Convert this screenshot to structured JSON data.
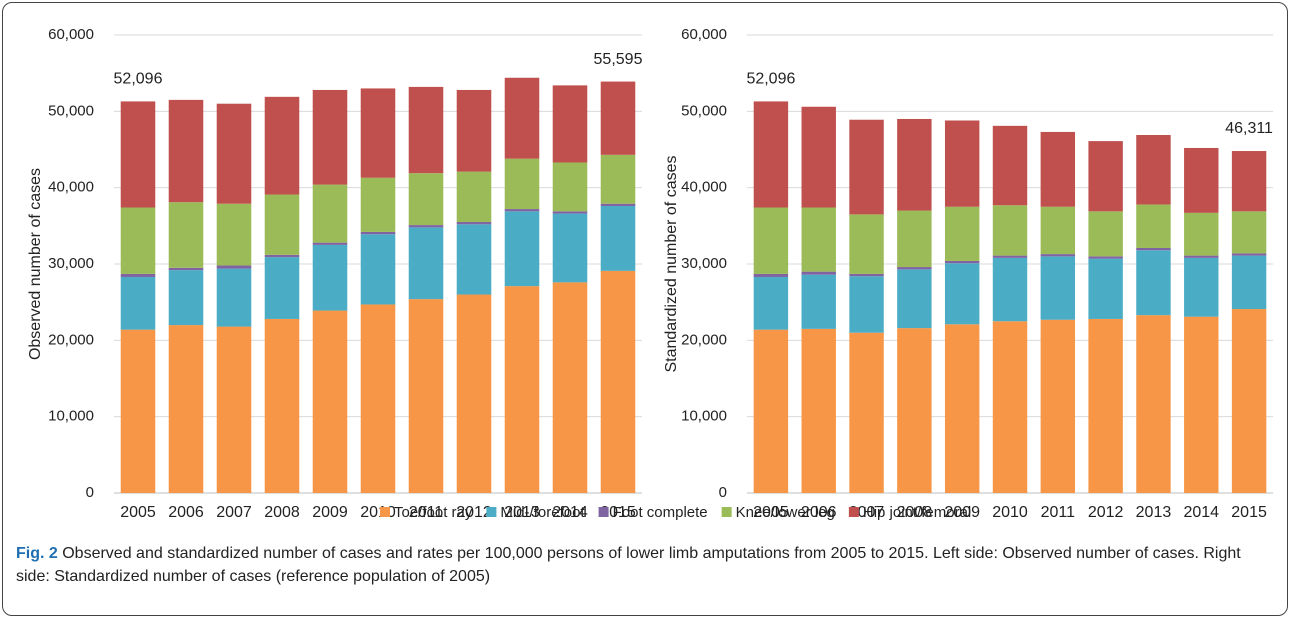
{
  "chart_data": [
    {
      "type": "bar",
      "stacked": true,
      "y_label": "Observed number of cases",
      "categories": [
        "2005",
        "2006",
        "2007",
        "2008",
        "2009",
        "2010",
        "2011",
        "2012",
        "2013",
        "2014",
        "2015"
      ],
      "series": [
        {
          "name": "Toe/foot ray",
          "color": "#f79646",
          "values": [
            21400,
            22000,
            21800,
            22800,
            23900,
            24700,
            25400,
            26000,
            27100,
            27600,
            29100
          ]
        },
        {
          "name": "Mid-/forefoot",
          "color": "#4bacc6",
          "values": [
            6900,
            7200,
            7600,
            8100,
            8600,
            9200,
            9400,
            9200,
            9800,
            9000,
            8500
          ]
        },
        {
          "name": "Foot complete",
          "color": "#8064a2",
          "values": [
            400,
            300,
            400,
            300,
            300,
            300,
            300,
            300,
            300,
            300,
            300
          ]
        },
        {
          "name": "Knee/lower leg",
          "color": "#9bbb59",
          "values": [
            8700,
            8600,
            8100,
            7900,
            7600,
            7100,
            6800,
            6600,
            6600,
            6400,
            6400
          ]
        },
        {
          "name": "Hip joint/femoral",
          "color": "#c0504d",
          "values": [
            13900,
            13400,
            13100,
            12800,
            12400,
            11700,
            11300,
            10700,
            10600,
            10100,
            9600
          ]
        }
      ],
      "annotations": [
        {
          "text": "52,096",
          "x": "2005"
        },
        {
          "text": "55,595",
          "x": "2015"
        }
      ],
      "ylim": [
        0,
        60000
      ],
      "yticks": [
        0,
        {
          "value": 10000,
          "label": "10,000"
        },
        {
          "value": 20000,
          "label": "20,000"
        },
        {
          "value": 30000,
          "label": "30,000"
        },
        {
          "value": 40000,
          "label": "40,000"
        },
        {
          "value": 50000,
          "label": "50,000"
        },
        {
          "value": 60000,
          "label": "60,000"
        }
      ],
      "grid": true
    },
    {
      "type": "bar",
      "stacked": true,
      "y_label": "Standardized number of cases",
      "categories": [
        "2005",
        "2006",
        "2007",
        "2008",
        "2009",
        "2010",
        "2011",
        "2012",
        "2013",
        "2014",
        "2015"
      ],
      "series": [
        {
          "color": "#f79646",
          "values": [
            21400,
            21500,
            21000,
            21600,
            22100,
            22500,
            22700,
            22800,
            23300,
            23100,
            24100
          ]
        },
        {
          "color": "#4bacc6",
          "values": [
            6900,
            7100,
            7400,
            7700,
            8000,
            8300,
            8300,
            7900,
            8500,
            7700,
            7000
          ]
        },
        {
          "color": "#8064a2",
          "values": [
            400,
            400,
            300,
            300,
            300,
            300,
            300,
            300,
            300,
            300,
            300
          ]
        },
        {
          "color": "#9bbb59",
          "values": [
            8700,
            8400,
            7800,
            7400,
            7100,
            6600,
            6200,
            5900,
            5700,
            5600,
            5500
          ]
        },
        {
          "color": "#c0504d",
          "values": [
            13900,
            13200,
            12400,
            12000,
            11300,
            10400,
            9800,
            9200,
            9100,
            8500,
            7900
          ]
        }
      ],
      "annotations": [
        {
          "text": "52,096",
          "x": "2005"
        },
        {
          "text": "46,311",
          "x": "2015"
        }
      ],
      "ylim": [
        0,
        60000
      ],
      "yticks": [
        0,
        {
          "value": 10000,
          "label": "10,000"
        },
        {
          "value": 20000,
          "label": "20,000"
        },
        {
          "value": 30000,
          "label": "30,000"
        },
        {
          "value": 40000,
          "label": "40,000"
        },
        {
          "value": 50000,
          "label": "50,000"
        },
        {
          "value": 60000,
          "label": "60,000"
        }
      ],
      "grid": true
    }
  ],
  "caption": {
    "label": "Fig. 2",
    "text": "Observed and standardized number of cases and rates per 100,000 persons of lower limb amputations from 2005 to 2015. Left side: Observed number of cases. Right side: Standardized number of cases (reference population of 2005)"
  }
}
